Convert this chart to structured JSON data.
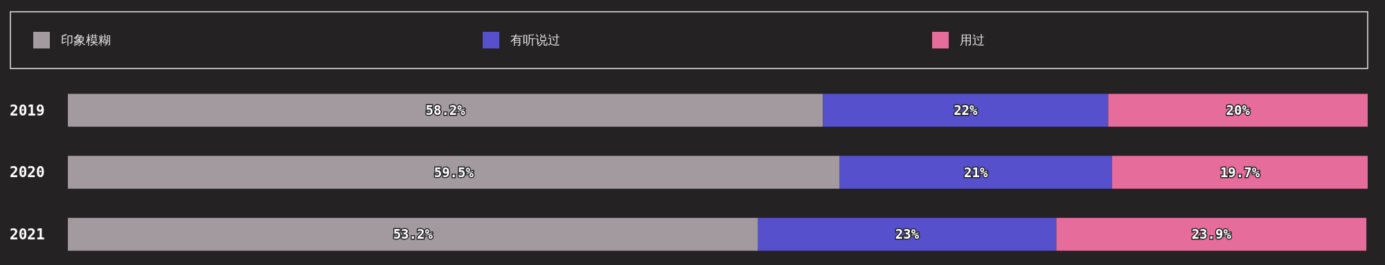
{
  "chart_data": {
    "type": "bar",
    "orientation": "horizontal",
    "stacked": true,
    "categories": [
      "2019",
      "2020",
      "2021"
    ],
    "series": [
      {
        "name": "印象模糊",
        "color": "#a39a9f",
        "values": [
          58.2,
          59.5,
          53.2
        ],
        "value_labels": [
          "58.2%",
          "59.5%",
          "53.2%"
        ]
      },
      {
        "name": "有听说过",
        "color": "#5650cc",
        "values": [
          22,
          21,
          23
        ],
        "value_labels": [
          "22%",
          "21%",
          "23%"
        ]
      },
      {
        "name": "用过",
        "color": "#e56c9b",
        "values": [
          20,
          19.7,
          23.9
        ],
        "value_labels": [
          "20%",
          "19.7%",
          "23.9%"
        ]
      }
    ],
    "xlim": [
      0,
      100.2
    ],
    "tick_labels": "y",
    "legend": "top"
  }
}
